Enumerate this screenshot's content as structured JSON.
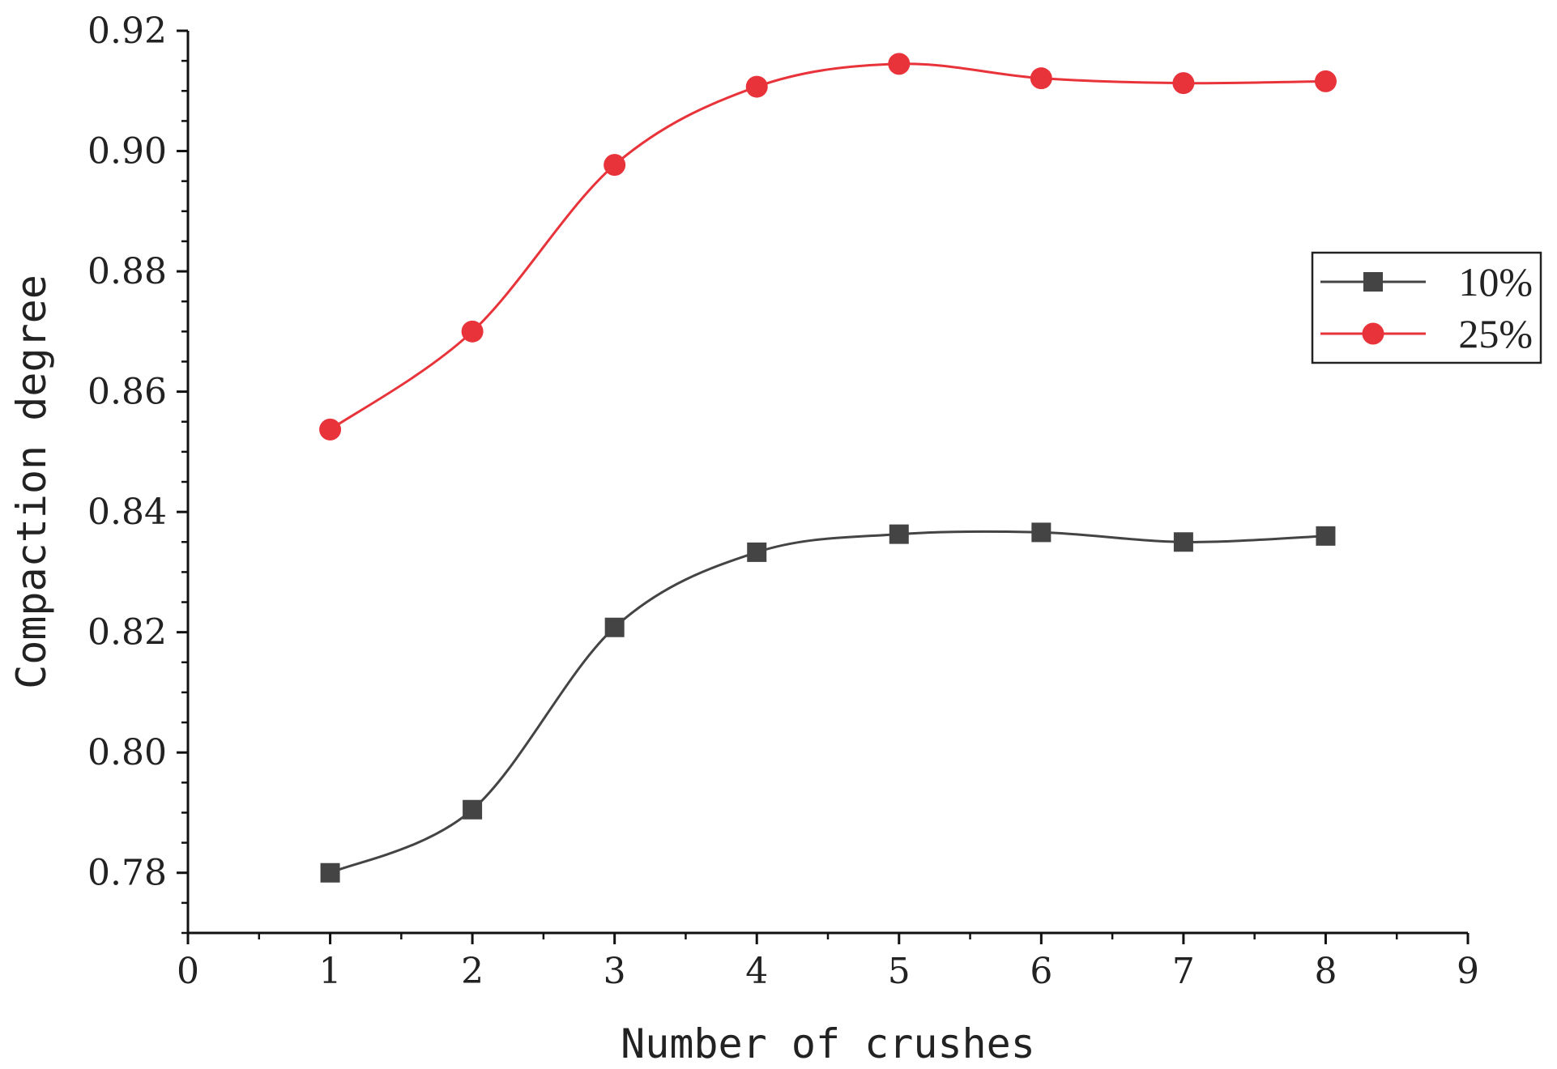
{
  "chart_data": {
    "type": "line",
    "title": "",
    "xlabel": "Number of crushes",
    "ylabel": "Compaction degree",
    "xlim": [
      0,
      9
    ],
    "ylim": [
      0.77,
      0.92
    ],
    "x_ticks": [
      "0",
      "1",
      "2",
      "3",
      "4",
      "5",
      "6",
      "7",
      "8",
      "9"
    ],
    "y_ticks": [
      "0.78",
      "0.80",
      "0.82",
      "0.84",
      "0.86",
      "0.88",
      "0.90",
      "0.92"
    ],
    "y_tick_values": [
      0.78,
      0.8,
      0.82,
      0.84,
      0.86,
      0.88,
      0.9,
      0.92
    ],
    "grid": false,
    "smooth": true,
    "legend_position": "right",
    "x": [
      1,
      2,
      3,
      4,
      5,
      6,
      7,
      8
    ],
    "series": [
      {
        "name": "10%",
        "marker": "square",
        "color": "#444444",
        "values": [
          0.78,
          0.7905,
          0.8208,
          0.8333,
          0.8363,
          0.8366,
          0.835,
          0.836
        ]
      },
      {
        "name": "25%",
        "marker": "circle",
        "color": "#e8333a",
        "values": [
          0.8537,
          0.87,
          0.8977,
          0.9107,
          0.9145,
          0.9121,
          0.9113,
          0.9116
        ]
      }
    ]
  }
}
